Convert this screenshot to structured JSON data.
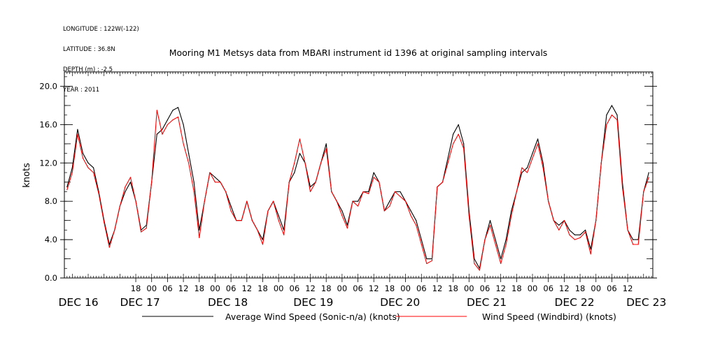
{
  "meta": {
    "longitude": "LONGITUDE : 122W(-122)",
    "latitude": "LATITUDE : 36.8N",
    "depth": "DEPTH (m) : -2.5",
    "year": "YEAR : 2011"
  },
  "chart_data": {
    "type": "line",
    "title": "Mooring M1 Metsys data from MBARI instrument id 1396 at original sampling intervals",
    "xlabel": "",
    "ylabel": "knots",
    "ylim": [
      0,
      21.5
    ],
    "yticks": [
      0.0,
      4.0,
      8.0,
      12.0,
      16.0,
      20.0
    ],
    "ytick_labels": [
      "0.0",
      "4.0",
      "8.0",
      "12.0",
      "16.0",
      "20.0"
    ],
    "xlim_hours": [
      -9,
      213.5
    ],
    "hour_ticks": [
      18,
      0,
      6,
      12,
      18,
      0,
      6,
      12,
      18,
      0,
      6,
      12,
      18,
      0,
      6,
      12,
      18,
      0,
      6,
      12,
      18,
      0,
      6,
      12,
      18,
      0,
      6,
      12,
      18,
      0,
      6,
      12
    ],
    "day_labels": [
      "DEC 16",
      "DEC 17",
      "DEC 18",
      "DEC 19",
      "DEC 20",
      "DEC 21",
      "DEC 22",
      "DEC 23"
    ],
    "grid": false,
    "legend_position": "bottom",
    "series": [
      {
        "name": "Average Wind Speed (Sonic-n/a) (knots)",
        "color": "#000000",
        "x": [
          -8,
          -6,
          -4,
          -2,
          0,
          2,
          4,
          6,
          8,
          10,
          12,
          14,
          16,
          18,
          20,
          22,
          24,
          26,
          28,
          30,
          32,
          34,
          36,
          38,
          40,
          42,
          44,
          46,
          48,
          50,
          52,
          54,
          56,
          58,
          60,
          62,
          64,
          66,
          68,
          70,
          72,
          74,
          76,
          78,
          80,
          82,
          84,
          86,
          88,
          90,
          92,
          94,
          96,
          98,
          100,
          102,
          104,
          106,
          108,
          110,
          112,
          114,
          116,
          118,
          120,
          122,
          124,
          126,
          128,
          130,
          132,
          134,
          136,
          138,
          140,
          142,
          144,
          146,
          148,
          150,
          152,
          154,
          156,
          158,
          160,
          162,
          164,
          166,
          168,
          170,
          172,
          174,
          176,
          178,
          180,
          182,
          184,
          186,
          188,
          190,
          192,
          194,
          196,
          198,
          200,
          202,
          204,
          206,
          208,
          210,
          212
        ],
        "y": [
          9.5,
          11.5,
          15.5,
          13,
          12,
          11.5,
          9,
          6,
          3.5,
          5,
          7.5,
          9,
          10,
          8,
          5,
          5.5,
          10,
          15,
          15.5,
          16.5,
          17.5,
          17.8,
          16,
          13,
          10,
          5,
          8,
          11,
          10.5,
          10,
          9,
          7.5,
          6,
          6,
          8,
          6,
          5,
          4,
          7,
          8,
          6.5,
          5,
          10,
          11,
          13,
          12,
          9.5,
          10,
          12,
          14,
          9,
          8,
          7,
          5.5,
          8,
          8,
          9,
          9,
          11,
          10,
          7,
          8,
          9,
          9,
          8,
          7,
          6,
          4,
          2,
          2,
          9.5,
          10,
          12.5,
          15,
          16,
          14,
          7,
          2,
          1,
          4,
          6,
          4,
          2,
          4,
          7,
          9,
          11,
          11.5,
          13,
          14.5,
          12,
          8,
          6,
          5.5,
          6,
          5,
          4.5,
          4.5,
          5,
          3,
          6,
          12,
          17,
          18,
          17,
          10,
          5,
          4,
          4,
          9,
          11
        ]
      },
      {
        "name": "Wind Speed (Windbird) (knots)",
        "color": "#ff0000",
        "x": [
          -8,
          -6,
          -4,
          -2,
          0,
          2,
          4,
          6,
          8,
          10,
          12,
          14,
          16,
          18,
          20,
          22,
          24,
          26,
          28,
          30,
          32,
          34,
          36,
          38,
          40,
          42,
          44,
          46,
          48,
          50,
          52,
          54,
          56,
          58,
          60,
          62,
          64,
          66,
          68,
          70,
          72,
          74,
          76,
          78,
          80,
          82,
          84,
          86,
          88,
          90,
          92,
          94,
          96,
          98,
          100,
          102,
          104,
          106,
          108,
          110,
          112,
          114,
          116,
          118,
          120,
          122,
          124,
          126,
          128,
          130,
          132,
          134,
          136,
          138,
          140,
          142,
          144,
          146,
          148,
          150,
          152,
          154,
          156,
          158,
          160,
          162,
          164,
          166,
          168,
          170,
          172,
          174,
          176,
          178,
          180,
          182,
          184,
          186,
          188,
          190,
          192,
          194,
          196,
          198,
          200,
          202,
          204,
          206,
          208,
          210,
          212
        ],
        "y": [
          9.2,
          11,
          15,
          12.5,
          11.5,
          11,
          8.8,
          5.8,
          3.2,
          5,
          7.5,
          9.5,
          10.5,
          8,
          4.8,
          5.2,
          10,
          17.5,
          15,
          16,
          16.5,
          16.8,
          14,
          12,
          9,
          4.2,
          8,
          11,
          10,
          10,
          9,
          7,
          6,
          6,
          8,
          6,
          5,
          3.5,
          7,
          8,
          6,
          4.5,
          10,
          12,
          14.5,
          12,
          9,
          10,
          12,
          13.5,
          9,
          8,
          6.5,
          5.2,
          8,
          7.5,
          9,
          8.8,
          10.5,
          10,
          7,
          7.5,
          9,
          8.5,
          8,
          6.5,
          5.5,
          3.5,
          1.5,
          1.8,
          9.5,
          10,
          12,
          14,
          15,
          13.5,
          6.5,
          1.5,
          0.8,
          4,
          5.5,
          3.5,
          1.5,
          3.5,
          6.5,
          9,
          11.5,
          11,
          12.5,
          14,
          11.5,
          8,
          6,
          5,
          6,
          4.5,
          4,
          4.2,
          4.8,
          2.5,
          6,
          12,
          16,
          17,
          16.5,
          9.5,
          5,
          3.5,
          3.5,
          9,
          10.5
        ]
      }
    ]
  }
}
